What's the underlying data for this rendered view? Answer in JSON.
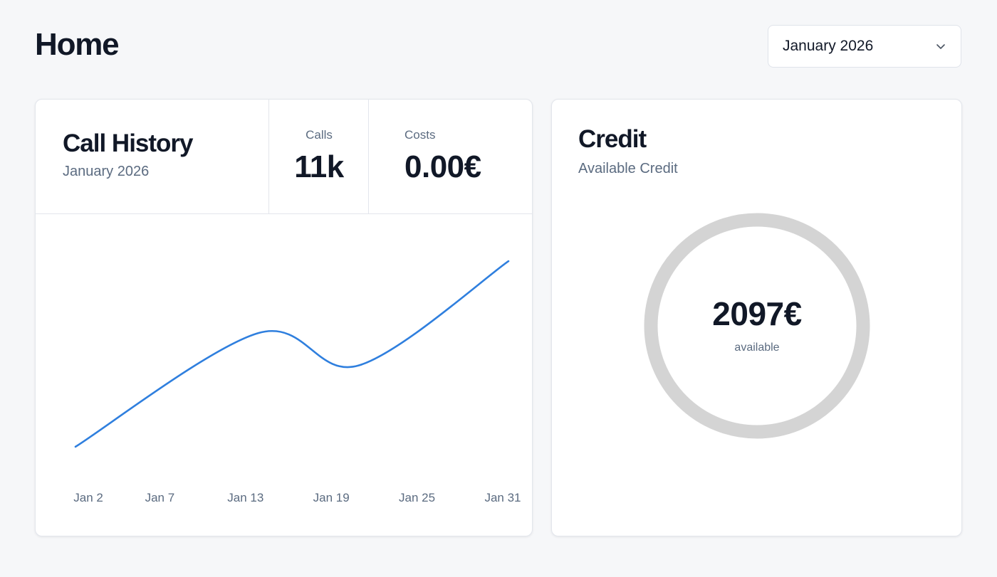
{
  "page": {
    "title": "Home"
  },
  "month_selector": {
    "value": "January 2026",
    "icon": "chevron-down-icon"
  },
  "call_history": {
    "title": "Call History",
    "subtitle": "January 2026",
    "stats": {
      "calls_label": "Calls",
      "calls_value": "11k",
      "costs_label": "Costs",
      "costs_value": "0.00€"
    }
  },
  "credit": {
    "title": "Credit",
    "subtitle": "Available Credit",
    "amount": "2097€",
    "amount_caption": "available",
    "ring_color": "#d4d4d4"
  },
  "colors": {
    "line": "#2f7fde",
    "muted_text": "#5b6b80",
    "border": "#e3e6ec"
  },
  "chart_data": {
    "type": "line",
    "title": "",
    "xlabel": "",
    "ylabel": "",
    "tick_labels": [
      "Jan 2",
      "Jan 7",
      "Jan 13",
      "Jan 19",
      "Jan 25",
      "Jan 31"
    ],
    "tick_days": [
      2,
      7,
      13,
      19,
      25,
      31
    ],
    "xlim": [
      1.1,
      31.4
    ],
    "ylim": [
      0,
      100
    ],
    "grid": false,
    "series": [
      {
        "points": [
          {
            "x": 1.1,
            "y": 12
          },
          {
            "x": 13.9,
            "y": 61
          },
          {
            "x": 20.9,
            "y": 47
          },
          {
            "x": 31.4,
            "y": 92
          }
        ]
      }
    ]
  }
}
